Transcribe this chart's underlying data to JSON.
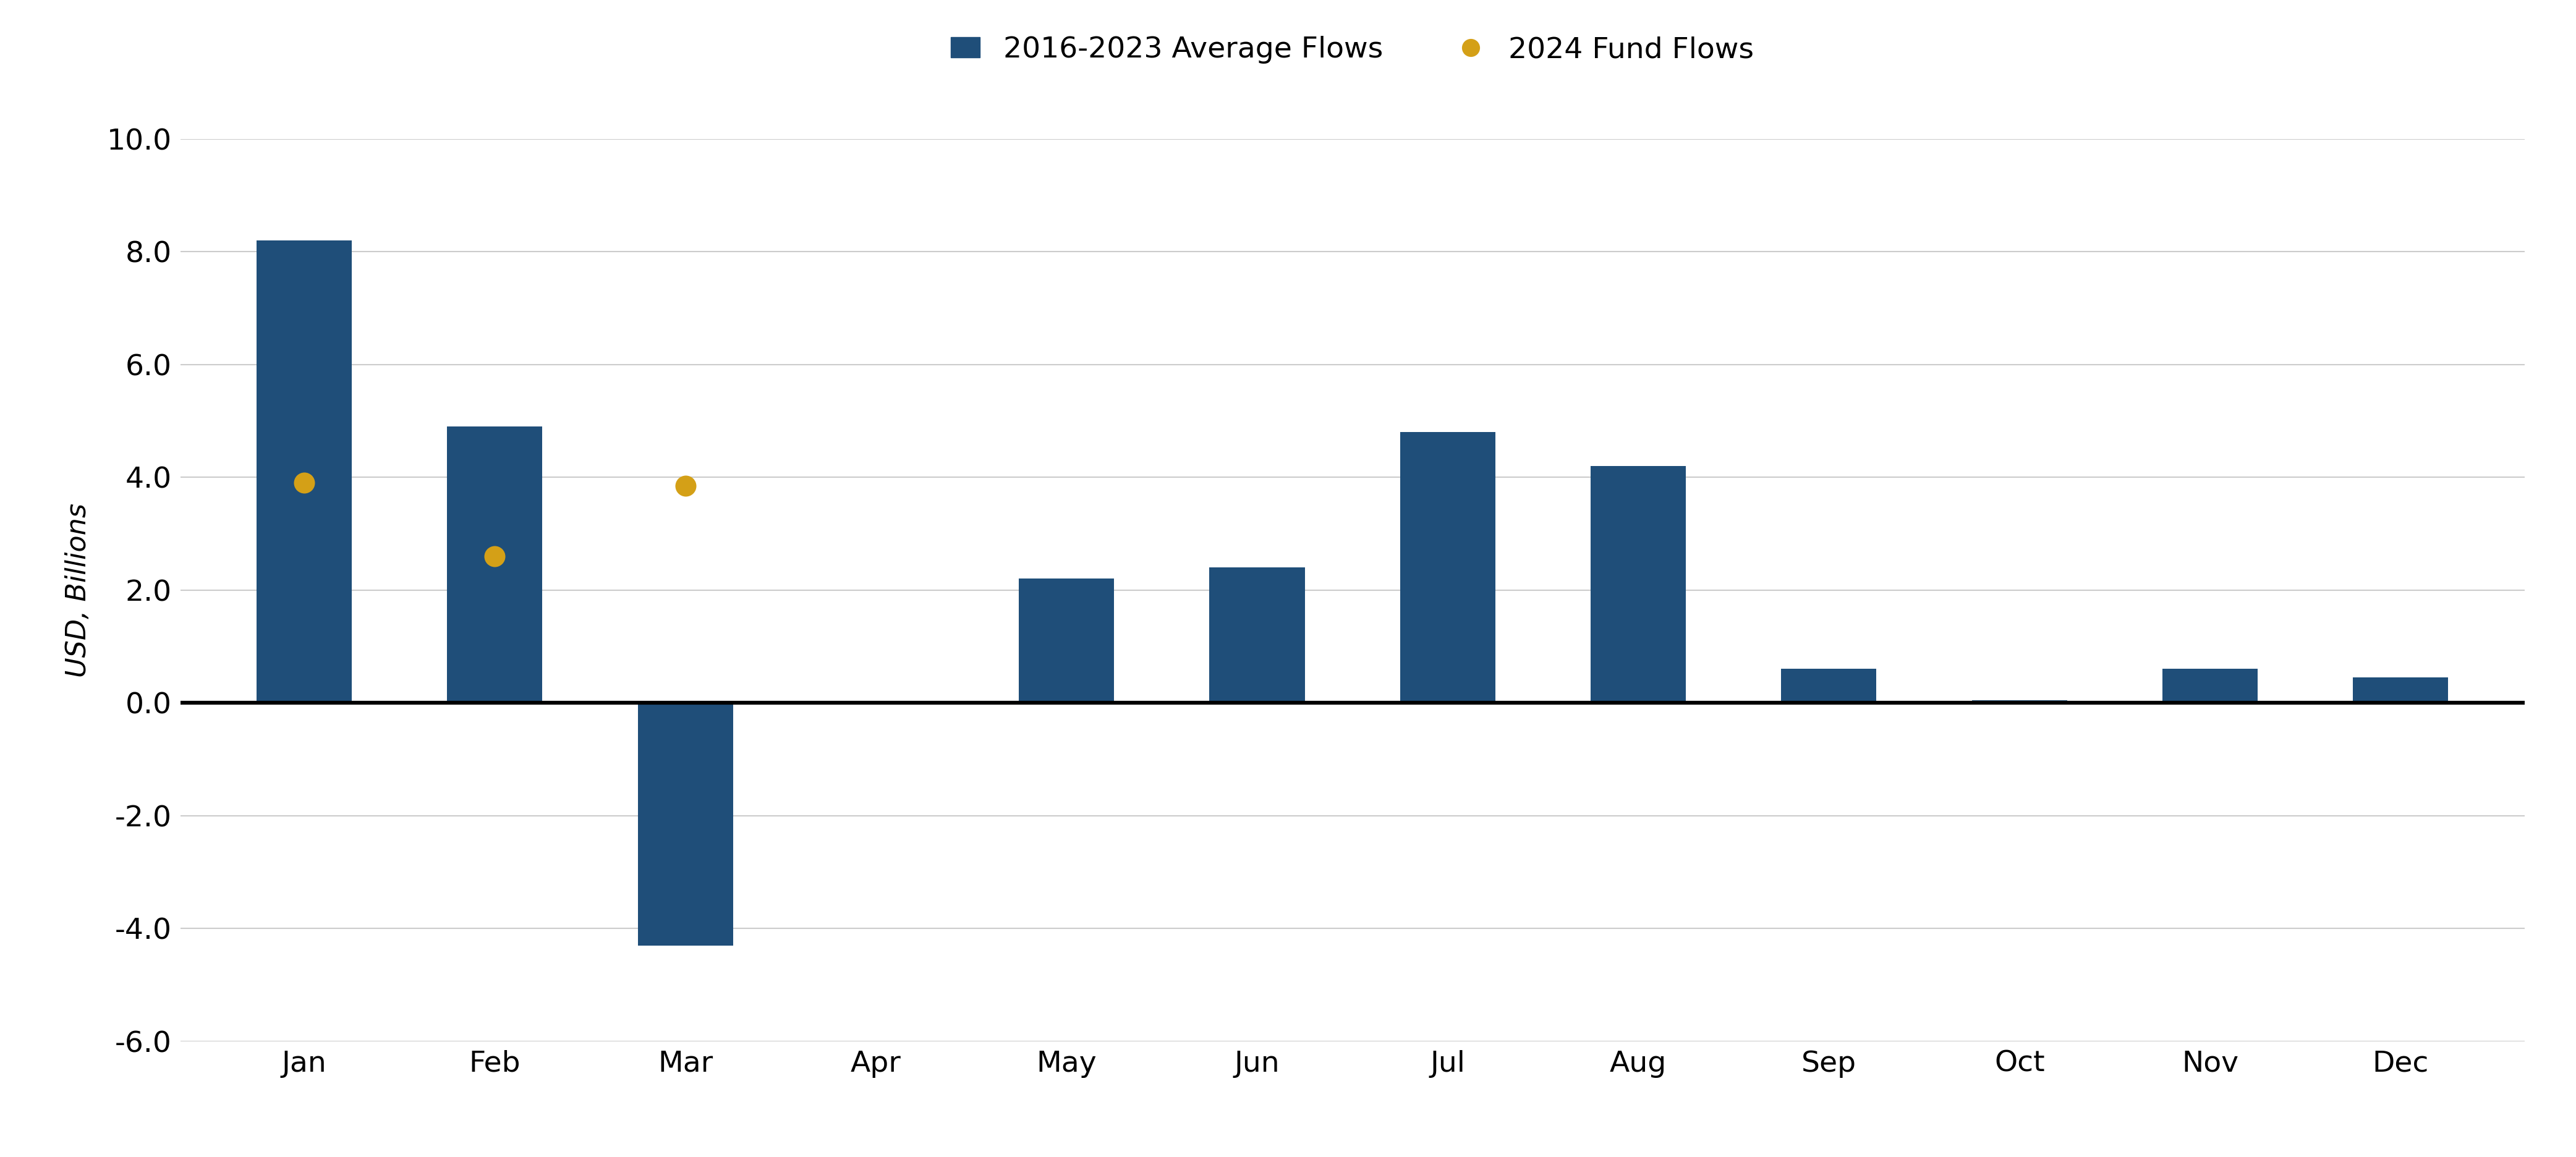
{
  "months": [
    "Jan",
    "Feb",
    "Mar",
    "Apr",
    "May",
    "Jun",
    "Jul",
    "Aug",
    "Sep",
    "Oct",
    "Nov",
    "Dec"
  ],
  "avg_flows": [
    8.2,
    4.9,
    -4.3,
    0.0,
    2.2,
    2.4,
    4.8,
    4.2,
    0.6,
    0.05,
    0.6,
    0.45
  ],
  "fund_flows_2024": [
    3.9,
    2.6,
    3.85,
    null,
    null,
    null,
    null,
    null,
    null,
    null,
    null,
    null
  ],
  "bar_color": "#1f4e79",
  "dot_color": "#d4a017",
  "ylabel": "USD, Billions",
  "ylim": [
    -6.0,
    10.0
  ],
  "yticks": [
    -6.0,
    -4.0,
    -2.0,
    0.0,
    2.0,
    4.0,
    6.0,
    8.0,
    10.0
  ],
  "legend_bar_label": "2016-2023 Average Flows",
  "legend_dot_label": "2024 Fund Flows",
  "grid_color": "#cccccc",
  "background_color": "#ffffff",
  "axis_line_color": "#000000",
  "bar_width": 0.5,
  "dot_size": 600,
  "label_fontsize": 32,
  "tick_fontsize": 34,
  "legend_fontsize": 34,
  "legend_marker_size": 20
}
